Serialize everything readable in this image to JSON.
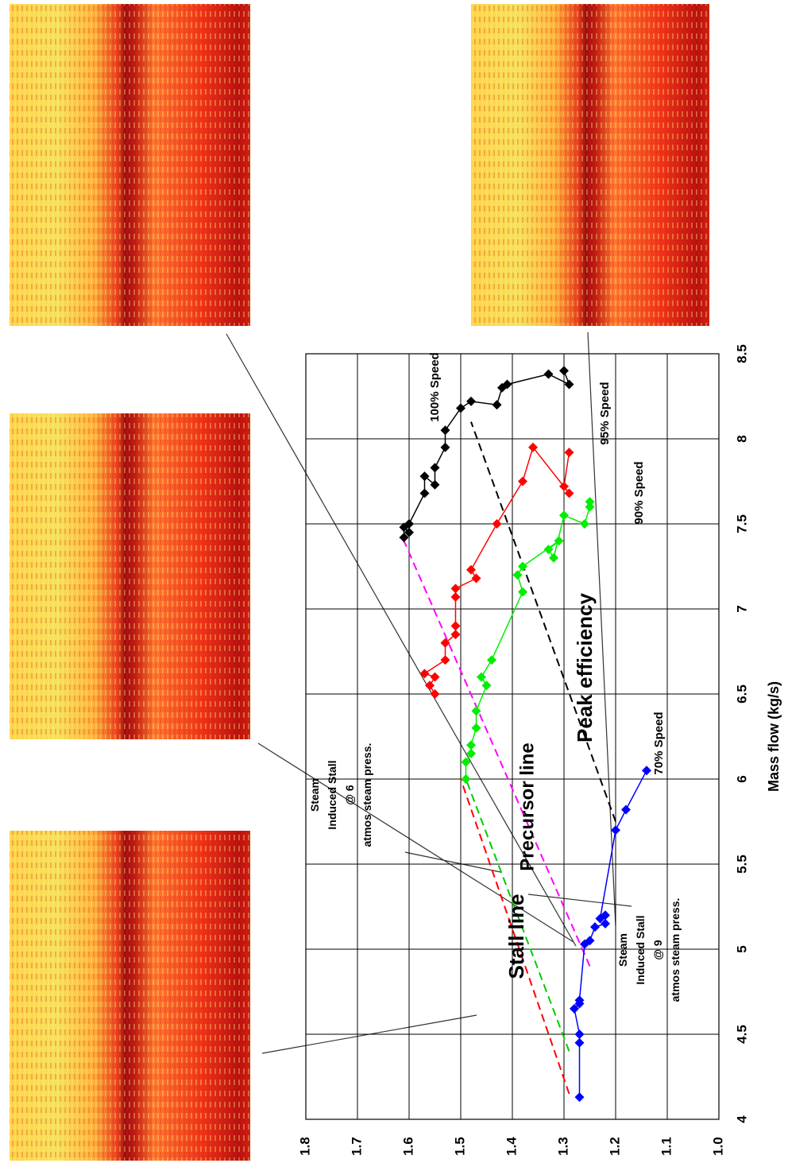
{
  "chart_data": {
    "type": "scatter",
    "x_label": "Mass flow (kg/s)",
    "xlim": [
      4,
      8.5
    ],
    "xticks": [
      4,
      4.5,
      5,
      5.5,
      6,
      6.5,
      7,
      7.5,
      8,
      8.5
    ],
    "ylim": [
      1.0,
      1.8
    ],
    "yticks": [
      {
        "value": 1,
        "label": "1.0"
      },
      1.1,
      1.2,
      1.3,
      1.4,
      1.5,
      1.6,
      1.7,
      1.8
    ],
    "grid": true,
    "series": [
      {
        "name": "100% Speed",
        "color": "#000000",
        "x": [
          7.42,
          7.48,
          7.45,
          7.5,
          7.68,
          7.78,
          7.73,
          7.83,
          7.95,
          8.05,
          8.18,
          8.22,
          8.2,
          8.3,
          8.32,
          8.38,
          8.32,
          8.4
        ],
        "values": [
          1.61,
          1.61,
          1.6,
          1.6,
          1.57,
          1.57,
          1.55,
          1.55,
          1.53,
          1.53,
          1.5,
          1.48,
          1.43,
          1.42,
          1.41,
          1.33,
          1.29,
          1.3
        ]
      },
      {
        "name": "95% Speed",
        "color": "#ff0000",
        "x": [
          6.5,
          6.55,
          6.6,
          6.62,
          6.7,
          6.8,
          6.85,
          6.9,
          7.07,
          7.12,
          7.18,
          7.23,
          7.5,
          7.75,
          7.95,
          7.68,
          7.72,
          7.92
        ],
        "values": [
          1.55,
          1.56,
          1.55,
          1.57,
          1.53,
          1.53,
          1.51,
          1.51,
          1.51,
          1.51,
          1.47,
          1.48,
          1.43,
          1.38,
          1.36,
          1.29,
          1.3,
          1.29
        ]
      },
      {
        "name": "90% Speed",
        "color": "#00ee00",
        "x": [
          6.0,
          6.1,
          6.15,
          6.2,
          6.3,
          6.4,
          6.55,
          6.6,
          6.7,
          7.1,
          7.2,
          7.25,
          7.4,
          7.35,
          7.3,
          7.55,
          7.5,
          7.6,
          7.63
        ],
        "values": [
          1.49,
          1.49,
          1.48,
          1.48,
          1.47,
          1.47,
          1.45,
          1.46,
          1.44,
          1.38,
          1.39,
          1.38,
          1.31,
          1.33,
          1.32,
          1.3,
          1.26,
          1.25,
          1.25
        ]
      },
      {
        "name": "70% Speed",
        "color": "#0000ff",
        "x": [
          4.13,
          4.45,
          4.5,
          4.65,
          4.68,
          4.7,
          5.03,
          5.05,
          5.13,
          5.15,
          5.2,
          5.18,
          5.7,
          5.82,
          6.05
        ],
        "values": [
          1.27,
          1.27,
          1.27,
          1.28,
          1.27,
          1.27,
          1.26,
          1.25,
          1.24,
          1.22,
          1.22,
          1.23,
          1.2,
          1.18,
          1.14
        ]
      }
    ],
    "reference_lines": [
      {
        "name": "Stall line",
        "color": "#ff0000",
        "x": [
          4.15,
          6.0
        ],
        "values": [
          1.29,
          1.5
        ]
      },
      {
        "color": "#00cc00",
        "x": [
          4.4,
          6.0
        ],
        "values": [
          1.29,
          1.49
        ]
      },
      {
        "name": "Precursor line",
        "color": "#ff00ff",
        "x": [
          4.9,
          7.4
        ],
        "values": [
          1.25,
          1.61
        ]
      },
      {
        "name": "Peak efficiency",
        "color": "#000000",
        "x": [
          5.75,
          8.1
        ],
        "values": [
          1.2,
          1.48
        ]
      }
    ],
    "annotations": [
      "Steam Induced Stall @ 6 atmos steam press.",
      "Steam Induced Stall @ 9 atmos steam press."
    ]
  }
}
